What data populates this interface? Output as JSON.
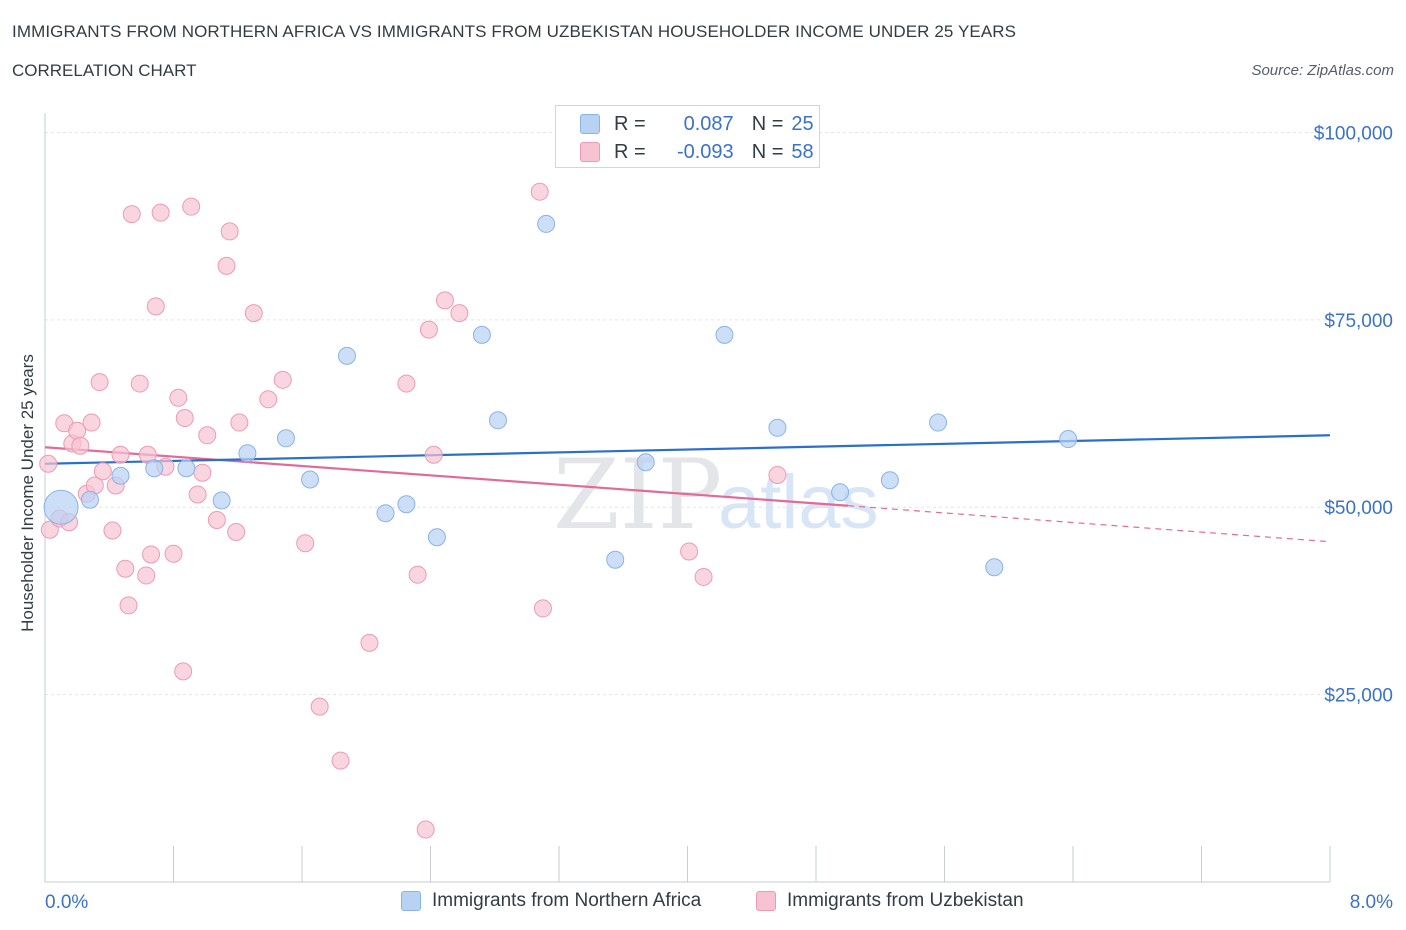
{
  "header": {
    "title": "IMMIGRANTS FROM NORTHERN AFRICA VS IMMIGRANTS FROM UZBEKISTAN HOUSEHOLDER INCOME UNDER 25 YEARS",
    "subtitle": "CORRELATION CHART",
    "source": "Source: ZipAtlas.com"
  },
  "watermark": {
    "zip": "ZIP",
    "atlas": "atlas"
  },
  "colors": {
    "blue_fill": "#b8d2f4",
    "blue_stroke": "#8ab3e6",
    "blue_line": "#2b6fcc",
    "pink_fill": "#f7c3d3",
    "pink_stroke": "#ee9ab5",
    "pink_line": "#e36a96",
    "axis_text": "#3a72c8",
    "grid": "#e2e6ea"
  },
  "legend": {
    "rows": [
      {
        "r_label": "R =",
        "r_value": "0.087",
        "n_label": "N =",
        "n_value": "25"
      },
      {
        "r_label": "R =",
        "r_value": "-0.093",
        "n_label": "N =",
        "n_value": "58"
      }
    ]
  },
  "chart_data": {
    "type": "scatter",
    "ylabel": "Householder Income Under 25 years",
    "xlim": [
      0,
      8
    ],
    "ylim": [
      0,
      105000
    ],
    "x_tick_labels": [
      "0.0%",
      "8.0%"
    ],
    "y_ticks": [
      25000,
      50000,
      75000,
      100000
    ],
    "y_tick_labels": [
      "$25,000",
      "$50,000",
      "$75,000",
      "$100,000"
    ],
    "grid": true,
    "legend_position": "bottom",
    "series": [
      {
        "name": "Immigrants from Northern Africa",
        "color": "blue",
        "trend": {
          "x": [
            0,
            8
          ],
          "y": [
            55800,
            59600
          ]
        },
        "points": [
          {
            "x": 0.1,
            "y": 50000,
            "size": "large"
          },
          {
            "x": 0.28,
            "y": 51000
          },
          {
            "x": 0.47,
            "y": 54200
          },
          {
            "x": 0.68,
            "y": 55200
          },
          {
            "x": 0.88,
            "y": 55200
          },
          {
            "x": 1.1,
            "y": 50900
          },
          {
            "x": 1.26,
            "y": 57200
          },
          {
            "x": 1.5,
            "y": 59200
          },
          {
            "x": 1.65,
            "y": 53700
          },
          {
            "x": 1.88,
            "y": 70200
          },
          {
            "x": 2.12,
            "y": 49200
          },
          {
            "x": 2.25,
            "y": 50400
          },
          {
            "x": 2.44,
            "y": 46000
          },
          {
            "x": 2.72,
            "y": 73000
          },
          {
            "x": 2.82,
            "y": 61600
          },
          {
            "x": 3.12,
            "y": 87800
          },
          {
            "x": 3.55,
            "y": 43000
          },
          {
            "x": 3.74,
            "y": 56000
          },
          {
            "x": 4.23,
            "y": 73000
          },
          {
            "x": 4.56,
            "y": 60600
          },
          {
            "x": 4.95,
            "y": 52000
          },
          {
            "x": 5.26,
            "y": 53600
          },
          {
            "x": 5.56,
            "y": 61300
          },
          {
            "x": 5.91,
            "y": 42000
          },
          {
            "x": 6.37,
            "y": 59100
          }
        ]
      },
      {
        "name": "Immigrants from Uzbekistan",
        "color": "pink",
        "trend": {
          "x": [
            0,
            5.0
          ],
          "y": [
            58000,
            50200
          ]
        },
        "trend_dashed": {
          "x": [
            5.0,
            8
          ],
          "y": [
            50200,
            45400
          ]
        },
        "points": [
          {
            "x": 0.02,
            "y": 55800
          },
          {
            "x": 0.03,
            "y": 47000
          },
          {
            "x": 0.09,
            "y": 48500
          },
          {
            "x": 0.12,
            "y": 61200
          },
          {
            "x": 0.15,
            "y": 48000
          },
          {
            "x": 0.17,
            "y": 58500
          },
          {
            "x": 0.2,
            "y": 60200
          },
          {
            "x": 0.22,
            "y": 58200
          },
          {
            "x": 0.26,
            "y": 51800
          },
          {
            "x": 0.29,
            "y": 61300
          },
          {
            "x": 0.31,
            "y": 52900
          },
          {
            "x": 0.34,
            "y": 66700
          },
          {
            "x": 0.36,
            "y": 54800
          },
          {
            "x": 0.42,
            "y": 46900
          },
          {
            "x": 0.44,
            "y": 52900
          },
          {
            "x": 0.47,
            "y": 57000
          },
          {
            "x": 0.5,
            "y": 41800
          },
          {
            "x": 0.52,
            "y": 36900
          },
          {
            "x": 0.54,
            "y": 89100
          },
          {
            "x": 0.59,
            "y": 66500
          },
          {
            "x": 0.63,
            "y": 40900
          },
          {
            "x": 0.64,
            "y": 57000
          },
          {
            "x": 0.66,
            "y": 43700
          },
          {
            "x": 0.69,
            "y": 76800
          },
          {
            "x": 0.72,
            "y": 89300
          },
          {
            "x": 0.75,
            "y": 55400
          },
          {
            "x": 0.8,
            "y": 43800
          },
          {
            "x": 0.83,
            "y": 64600
          },
          {
            "x": 0.86,
            "y": 28100
          },
          {
            "x": 0.87,
            "y": 61900
          },
          {
            "x": 0.91,
            "y": 90100
          },
          {
            "x": 0.95,
            "y": 51700
          },
          {
            "x": 0.98,
            "y": 54600
          },
          {
            "x": 1.01,
            "y": 59600
          },
          {
            "x": 1.07,
            "y": 48300
          },
          {
            "x": 1.13,
            "y": 82200
          },
          {
            "x": 1.15,
            "y": 86800
          },
          {
            "x": 1.19,
            "y": 46700
          },
          {
            "x": 1.21,
            "y": 61300
          },
          {
            "x": 1.3,
            "y": 75900
          },
          {
            "x": 1.39,
            "y": 64400
          },
          {
            "x": 1.48,
            "y": 67000
          },
          {
            "x": 1.62,
            "y": 45200
          },
          {
            "x": 1.71,
            "y": 23400
          },
          {
            "x": 1.84,
            "y": 16200
          },
          {
            "x": 2.02,
            "y": 31900
          },
          {
            "x": 2.25,
            "y": 66500
          },
          {
            "x": 2.32,
            "y": 41000
          },
          {
            "x": 2.37,
            "y": 7000
          },
          {
            "x": 2.39,
            "y": 73700
          },
          {
            "x": 2.42,
            "y": 57000
          },
          {
            "x": 2.49,
            "y": 77600
          },
          {
            "x": 2.58,
            "y": 75900
          },
          {
            "x": 3.08,
            "y": 92100
          },
          {
            "x": 3.1,
            "y": 36500
          },
          {
            "x": 4.01,
            "y": 44100
          },
          {
            "x": 4.1,
            "y": 40700
          },
          {
            "x": 4.56,
            "y": 54300
          }
        ]
      }
    ]
  },
  "bottom_legend": {
    "items": [
      {
        "label": "Immigrants from Northern Africa"
      },
      {
        "label": "Immigrants from Uzbekistan"
      }
    ]
  }
}
